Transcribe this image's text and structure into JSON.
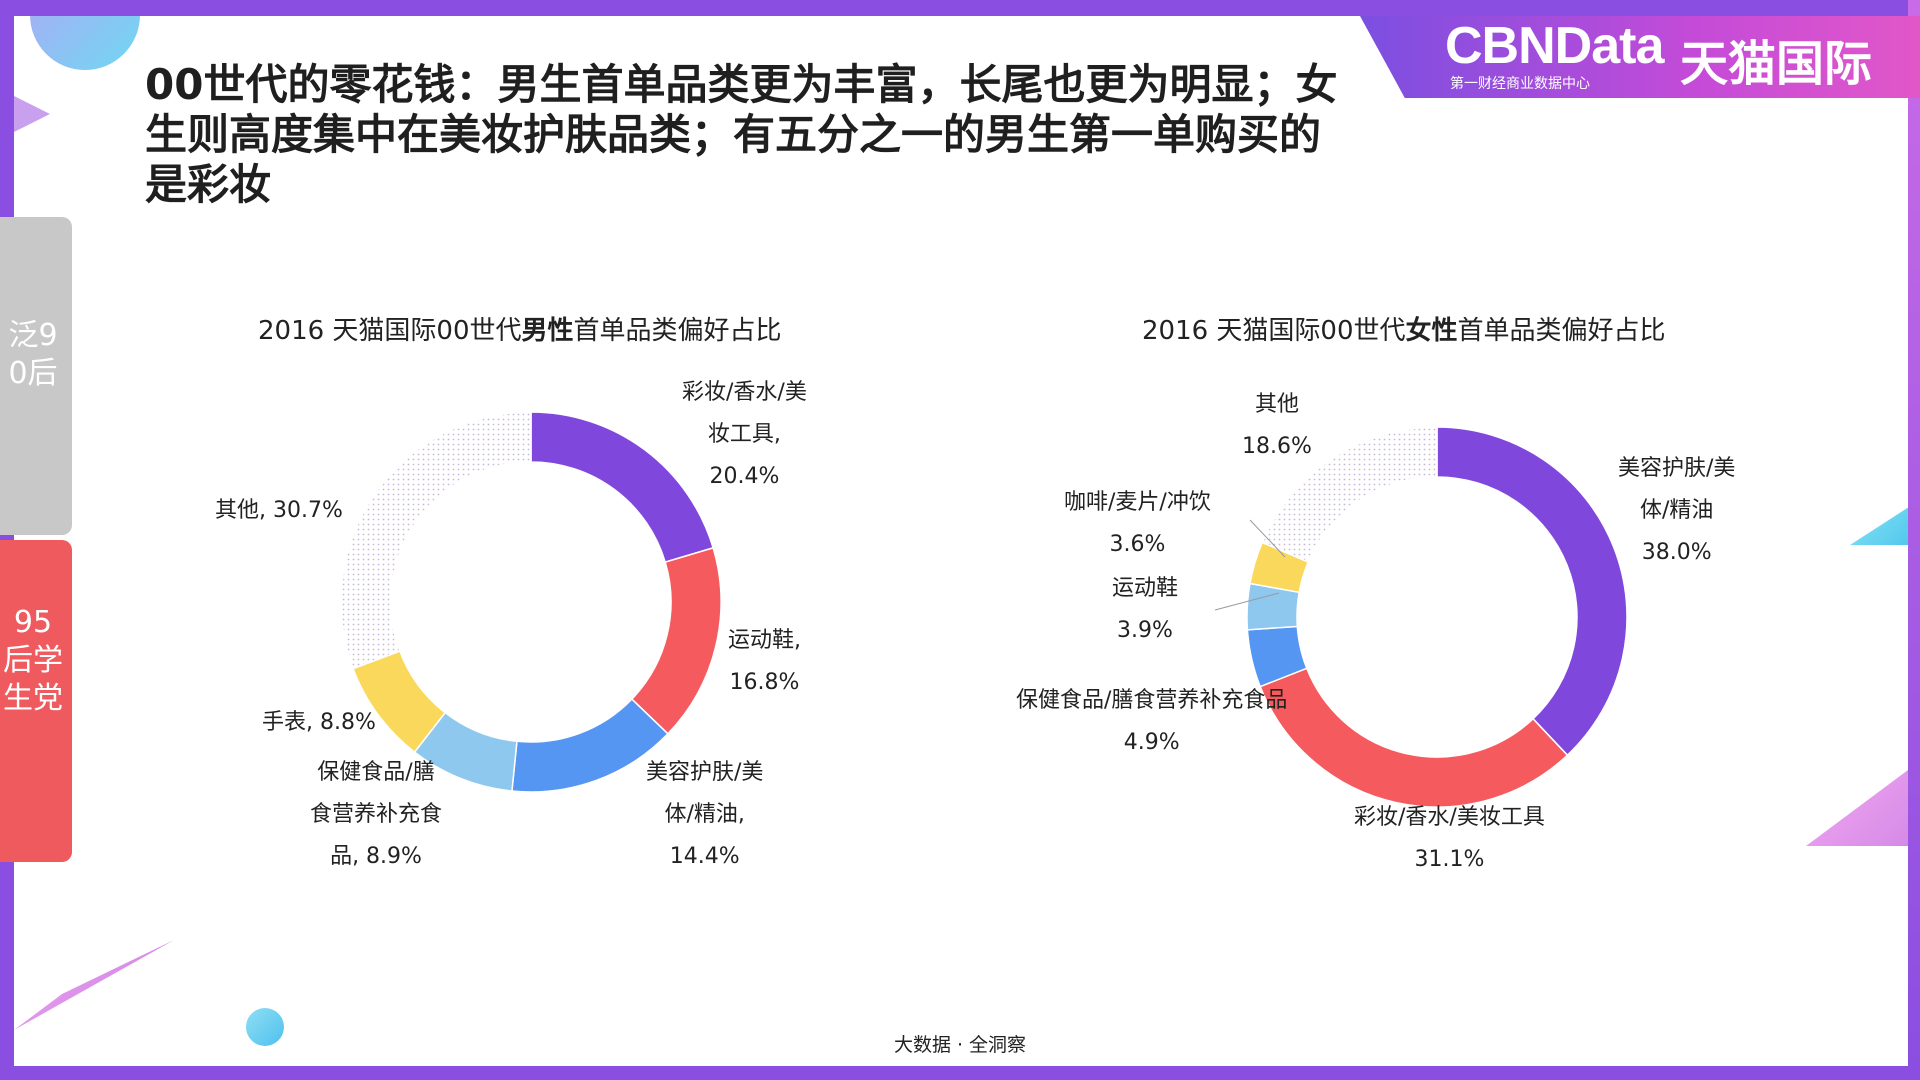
{
  "title": "00世代的零花钱：男生首单品类更为丰富，长尾也更为明显；女生则高度集中在美妆护肤品类；有五分之一的男生第一单购买的是彩妆",
  "brand": {
    "name": "CBNData",
    "subtitle": "第一财经商业数据中心",
    "partner": "天猫国际"
  },
  "sidebar": {
    "tab1": "泛90后",
    "tab2": "95后学生党"
  },
  "footer": "大数据 · 全洞察",
  "colors": {
    "purple": "#7f47dc",
    "red": "#f55a5f",
    "blue": "#5596f2",
    "lightblue": "#8ec8ef",
    "yellow": "#fad85c",
    "dots": "#c8b8d8"
  },
  "chart_data": [
    {
      "type": "pie",
      "title_prefix": "2016 天猫国际00世代",
      "title_bold": "男性",
      "title_suffix": "首单品类偏好占比",
      "slices": [
        {
          "label": "彩妆/香水/美妆工具",
          "value": 20.4,
          "color": "#7f47dc",
          "text": [
            "彩妆/香水/美",
            "妆工具,",
            "20.4%"
          ]
        },
        {
          "label": "运动鞋",
          "value": 16.8,
          "color": "#f55a5f",
          "text": [
            "运动鞋,",
            "16.8%"
          ]
        },
        {
          "label": "美容护肤/美体/精油",
          "value": 14.4,
          "color": "#5596f2",
          "text": [
            "美容护肤/美",
            "体/精油,",
            "14.4%"
          ]
        },
        {
          "label": "保健食品/膳食营养补充食品",
          "value": 8.9,
          "color": "#8ec8ef",
          "text": [
            "保健食品/膳",
            "食营养补充食",
            "品, 8.9%"
          ]
        },
        {
          "label": "手表",
          "value": 8.8,
          "color": "#fad85c",
          "text": [
            "手表, 8.8%"
          ]
        },
        {
          "label": "其他",
          "value": 30.7,
          "color": "dots",
          "text": [
            "其他, 30.7%"
          ]
        }
      ]
    },
    {
      "type": "pie",
      "title_prefix": "2016 天猫国际00世代",
      "title_bold": "女性",
      "title_suffix": "首单品类偏好占比",
      "slices": [
        {
          "label": "美容护肤/美体/精油",
          "value": 38.0,
          "color": "#7f47dc",
          "text": [
            "美容护肤/美",
            "体/精油",
            "38.0%"
          ]
        },
        {
          "label": "彩妆/香水/美妆工具",
          "value": 31.1,
          "color": "#f55a5f",
          "text": [
            "彩妆/香水/美妆工具",
            "31.1%"
          ]
        },
        {
          "label": "保健食品/膳食营养补充食品",
          "value": 4.9,
          "color": "#5596f2",
          "text": [
            "保健食品/膳食营养补充食品",
            "4.9%"
          ]
        },
        {
          "label": "运动鞋",
          "value": 3.9,
          "color": "#8ec8ef",
          "text": [
            "运动鞋",
            "3.9%"
          ]
        },
        {
          "label": "咖啡/麦片/冲饮",
          "value": 3.6,
          "color": "#fad85c",
          "text": [
            "咖啡/麦片/冲饮",
            "3.6%"
          ]
        },
        {
          "label": "其他",
          "value": 18.6,
          "color": "dots",
          "text": [
            "其他",
            "18.6%"
          ]
        }
      ]
    }
  ]
}
